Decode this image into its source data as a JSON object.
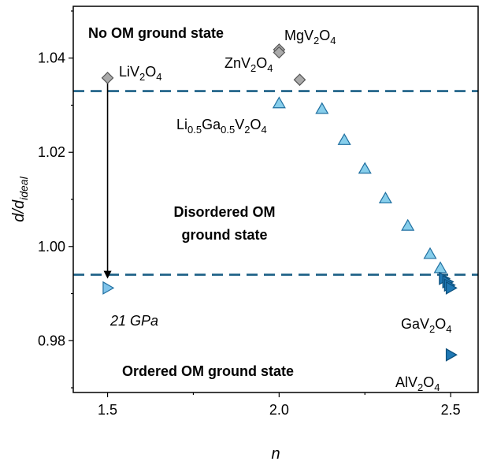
{
  "chart_data": {
    "type": "scatter",
    "xlabel": "n",
    "ylabel": "d/d",
    "ylabel_sub": "ideal",
    "xlim": [
      1.4,
      2.58
    ],
    "ylim": [
      0.969,
      1.051
    ],
    "xticks": [
      1.5,
      2.0,
      2.5
    ],
    "xtick_labels": [
      "1.5",
      "2.0",
      "2.5"
    ],
    "yticks": [
      0.98,
      1.0,
      1.02,
      1.04
    ],
    "ytick_labels": [
      "0.98",
      "1.00",
      "1.02",
      "1.04"
    ],
    "grid": false,
    "thresholds": [
      1.033,
      0.994
    ],
    "colors": {
      "diamond_fill": "#aaaaaa",
      "diamond_stroke": "#555555",
      "triangle_up_fill": "#87ceeb",
      "triangle_up_stroke": "#1f6fa0",
      "triangle_right_fill": "#1f78b4",
      "triangle_right_stroke": "#0b4f7c",
      "light_right_fill": "#7fc3ea",
      "dashed_line": "#1a5f85"
    },
    "series": [
      {
        "marker": "diamond",
        "points": [
          {
            "x": 1.5,
            "y": 1.0358
          },
          {
            "x": 2.0,
            "y": 1.0418
          },
          {
            "x": 2.0,
            "y": 1.0412
          },
          {
            "x": 2.06,
            "y": 1.0354
          }
        ]
      },
      {
        "marker": "triangle-up",
        "points": [
          {
            "x": 2.0,
            "y": 1.0304
          },
          {
            "x": 2.125,
            "y": 1.0292
          },
          {
            "x": 2.19,
            "y": 1.0226
          },
          {
            "x": 2.25,
            "y": 1.0165
          },
          {
            "x": 2.31,
            "y": 1.0102
          },
          {
            "x": 2.375,
            "y": 1.0044
          },
          {
            "x": 2.44,
            "y": 0.9984
          },
          {
            "x": 2.47,
            "y": 0.9954
          }
        ]
      },
      {
        "marker": "triangle-right",
        "points": [
          {
            "x": 2.48,
            "y": 0.9932
          },
          {
            "x": 2.49,
            "y": 0.9925
          },
          {
            "x": 2.495,
            "y": 0.9918
          },
          {
            "x": 2.5,
            "y": 0.9912
          },
          {
            "x": 2.5,
            "y": 0.977
          }
        ]
      },
      {
        "marker": "triangle-right-light",
        "points": [
          {
            "x": 1.5,
            "y": 0.9912
          }
        ]
      }
    ],
    "arrow": {
      "x": 1.5,
      "y_from": 1.0355,
      "y_to": 0.9935
    },
    "region_labels": {
      "no_om": "No OM ground state",
      "disordered_1": "Disordered OM",
      "disordered_2": "ground state",
      "ordered": "Ordered OM ground state"
    },
    "annotations": {
      "liv2o4": [
        "Li",
        "V",
        "2",
        "O",
        "4"
      ],
      "mgv2o4": [
        "Mg",
        "V",
        "2",
        "O",
        "4"
      ],
      "znv2o4": [
        "Zn",
        "V",
        "2",
        "O",
        "4"
      ],
      "ligav2o4": [
        "Li",
        "0.5",
        "Ga",
        "0.5",
        "V",
        "2",
        "O",
        "4"
      ],
      "gav2o4": [
        "Ga",
        "V",
        "2",
        "O",
        "4"
      ],
      "alv2o4": [
        "Al",
        "V",
        "2",
        "O",
        "4"
      ],
      "pressure": "21 GPa"
    }
  }
}
